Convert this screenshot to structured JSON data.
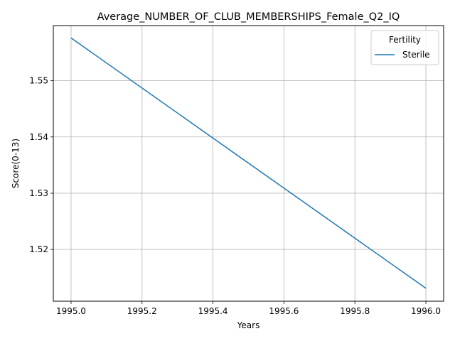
{
  "chart_data": {
    "type": "line",
    "title": "Average_NUMBER_OF_CLUB_MEMBERSHIPS_Female_Q2_IQ",
    "xlabel": "Years",
    "ylabel": "Score(0-13)",
    "xlim": [
      1994.95,
      1996.05
    ],
    "ylim": [
      1.5108,
      1.5598
    ],
    "x_ticks": [
      1995.0,
      1995.2,
      1995.4,
      1995.6,
      1995.8,
      1996.0
    ],
    "x_tick_labels": [
      "1995.0",
      "1995.2",
      "1995.4",
      "1995.6",
      "1995.8",
      "1996.0"
    ],
    "y_ticks": [
      1.52,
      1.53,
      1.54,
      1.55
    ],
    "y_tick_labels": [
      "1.52",
      "1.53",
      "1.54",
      "1.55"
    ],
    "grid": true,
    "legend": {
      "title": "Fertility",
      "placement": "top-right"
    },
    "series": [
      {
        "name": "Sterile",
        "color": "#1f77b4",
        "x": [
          1995,
          1996
        ],
        "y": [
          1.5576,
          1.5131
        ]
      }
    ]
  }
}
